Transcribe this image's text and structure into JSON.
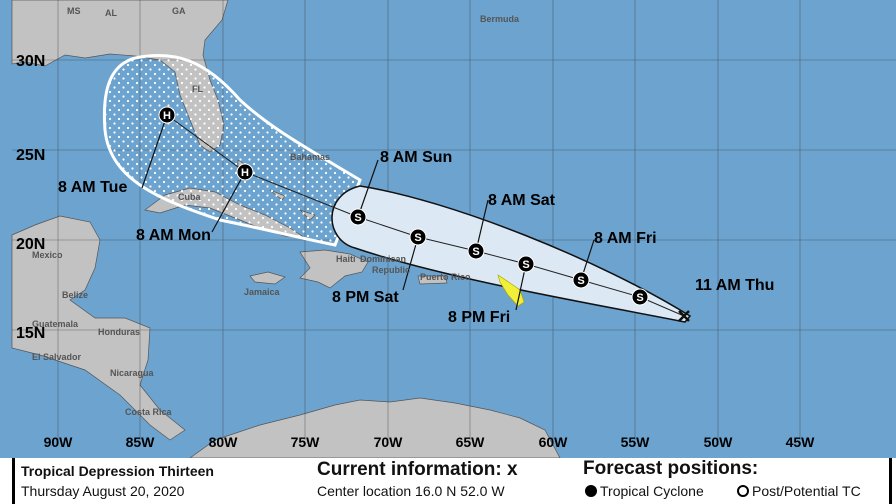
{
  "map": {
    "colors": {
      "water": "#6ca3cf",
      "land": "#c2c2c2",
      "cone_inner": "#dce9f5",
      "warning": "#f2ef3a"
    },
    "lat_labels": [
      "30N",
      "25N",
      "20N",
      "15N"
    ],
    "lon_labels": [
      "90W",
      "85W",
      "80W",
      "75W",
      "70W",
      "65W",
      "60W",
      "55W",
      "50W",
      "45W"
    ],
    "place_labels": [
      "MS",
      "AL",
      "GA",
      "FL",
      "Bermuda",
      "Bahamas",
      "Cuba",
      "Mexico",
      "Belize",
      "Jamaica",
      "Haiti",
      "Dominican",
      "Republic",
      "Puerto Rico",
      "Guatemala",
      "Honduras",
      "El Salvador",
      "Nicaragua",
      "Costa Rica"
    ],
    "track": [
      {
        "label": "11 AM Thu",
        "symbol": "x"
      },
      {
        "label": "",
        "symbol": "S"
      },
      {
        "label": "8 AM Fri",
        "symbol": "S"
      },
      {
        "label": "8 PM Fri",
        "symbol": "S"
      },
      {
        "label": "8 AM Sat",
        "symbol": "S"
      },
      {
        "label": "8 PM Sat",
        "symbol": "S"
      },
      {
        "label": "8 AM Sun",
        "symbol": "S"
      },
      {
        "label": "8 AM Mon",
        "symbol": "H"
      },
      {
        "label": "8 AM Tue",
        "symbol": "H"
      }
    ]
  },
  "legend": {
    "storm_name": "Tropical Depression Thirteen",
    "date": "Thursday August 20, 2020",
    "current_title": "Current information: x",
    "center_location": "Center location 16.0 N 52.0 W",
    "forecast_title": "Forecast positions:",
    "tropical_cyclone": "Tropical Cyclone",
    "post_potential": "Post/Potential TC"
  }
}
